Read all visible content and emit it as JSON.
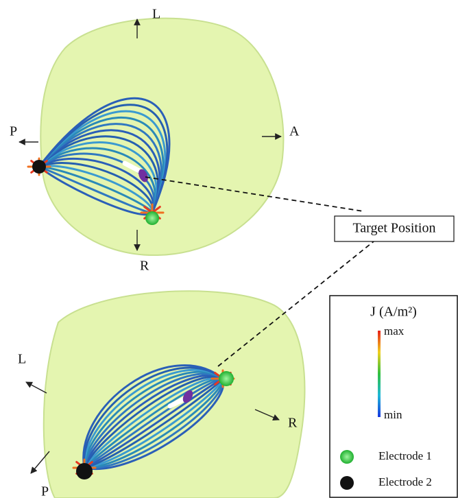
{
  "top_view": {
    "labels": {
      "left": "L",
      "posterior": "P",
      "anterior": "A",
      "right": "R"
    }
  },
  "bottom_view": {
    "labels": {
      "left": "L",
      "right": "R",
      "posterior": "P"
    }
  },
  "annotation": "Target Position",
  "legend": {
    "title": "J (A/m²)",
    "max": "max",
    "min": "min",
    "electrode_1": "Electrode 1",
    "electrode_2": "Electrode 2"
  }
}
